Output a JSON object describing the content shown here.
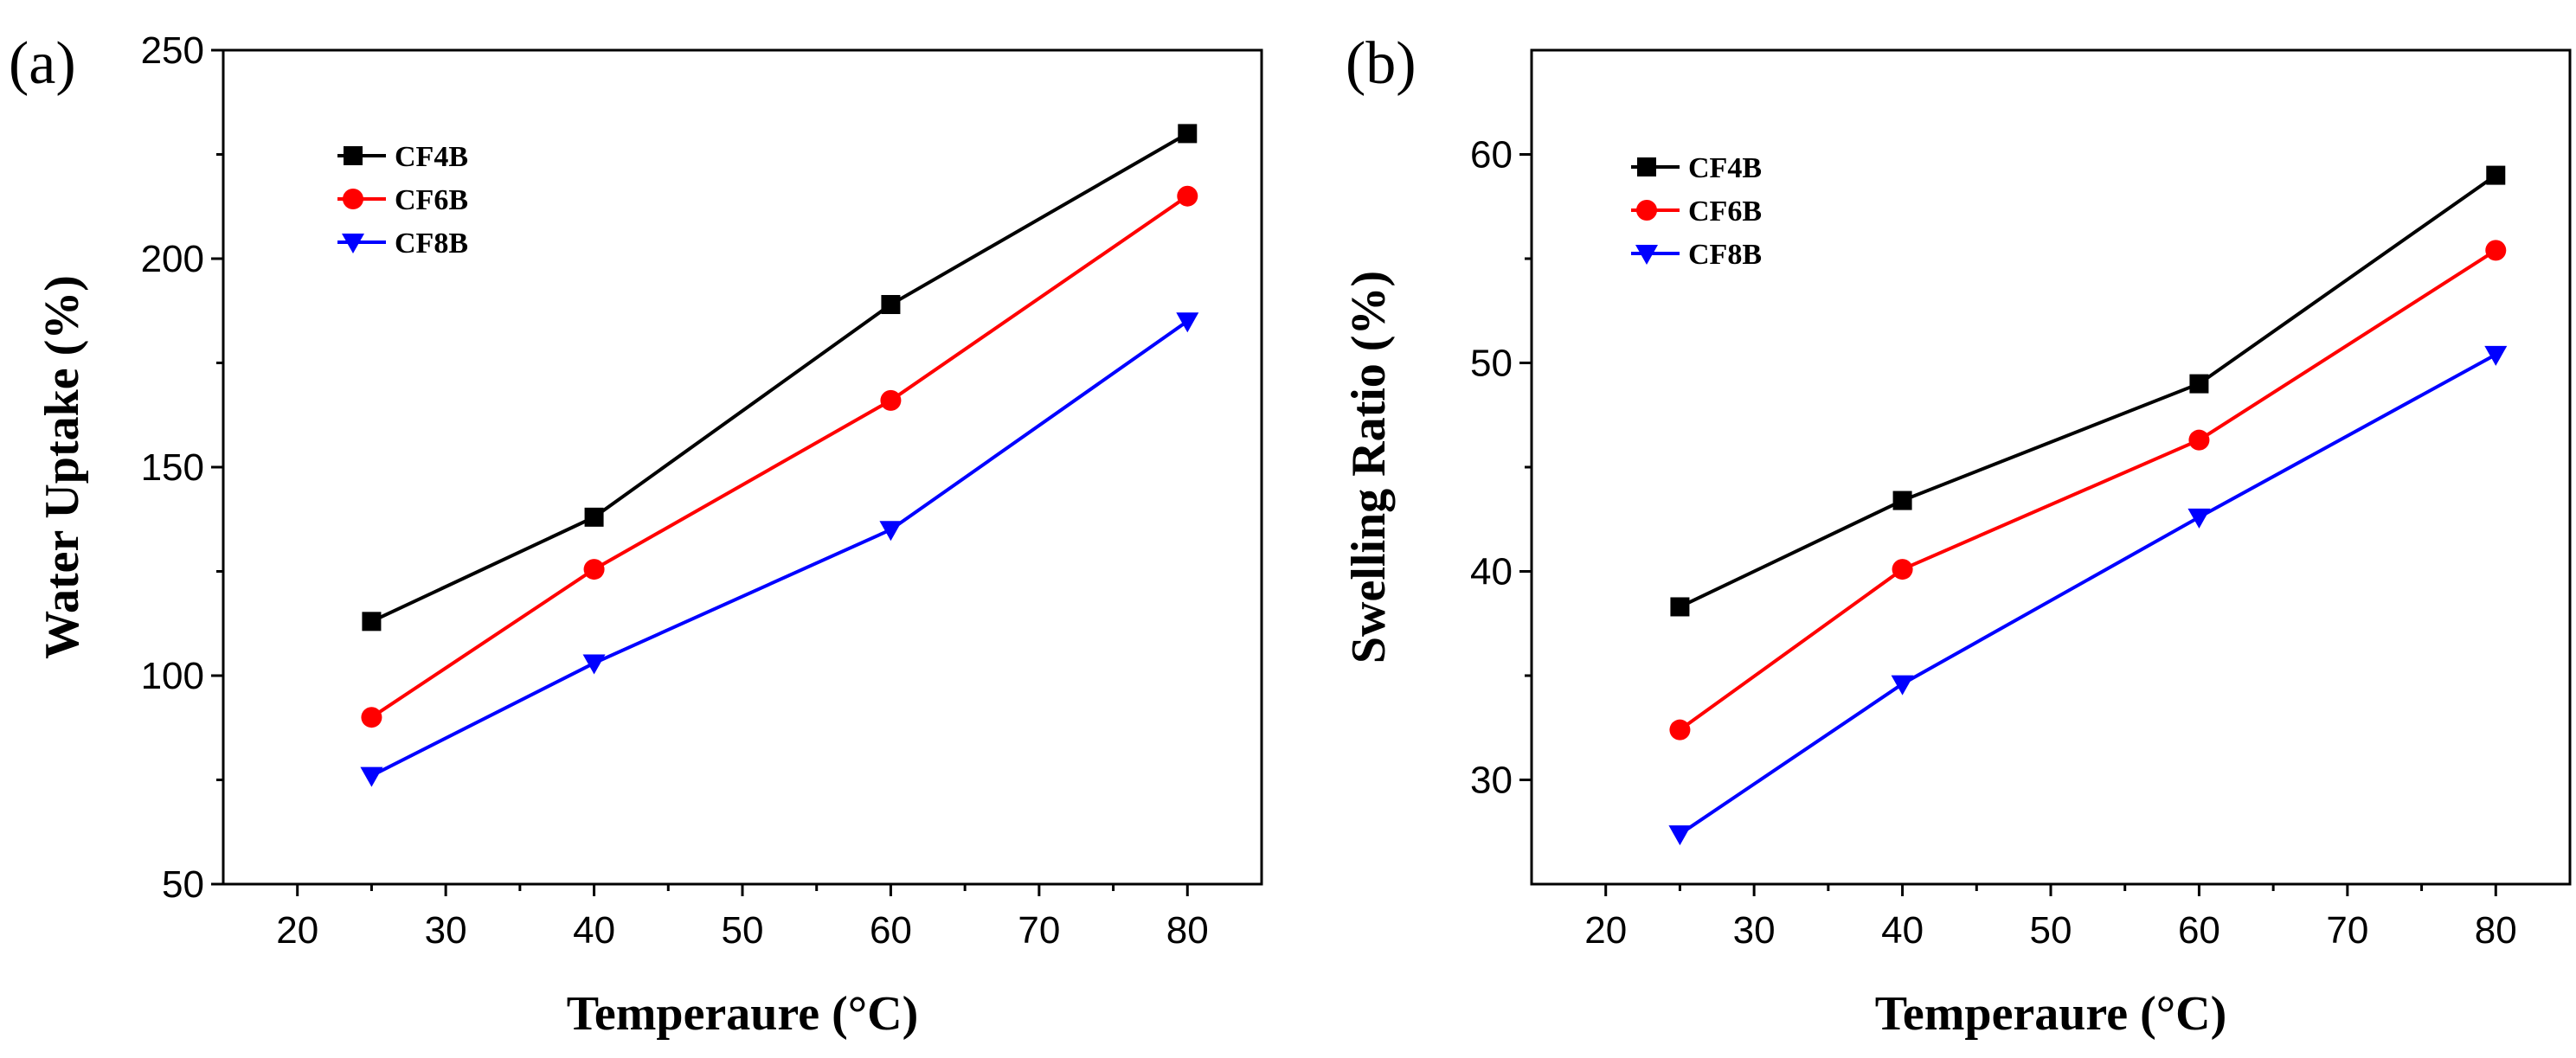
{
  "chart_data": [
    {
      "type": "line",
      "panel_label": "(a)",
      "xlabel": "Temperaure (°C)",
      "ylabel": "Water Uptake (%)",
      "xlim": [
        15,
        85
      ],
      "ylim": [
        50,
        250
      ],
      "xticks": [
        20,
        30,
        40,
        50,
        60,
        70,
        80
      ],
      "yticks": [
        50,
        100,
        150,
        200,
        250
      ],
      "grid": false,
      "legend_position": "top-left",
      "x": [
        25,
        40,
        60,
        80
      ],
      "series": [
        {
          "name": "CF4B",
          "color": "#000000",
          "marker": "square",
          "values": [
            113,
            138,
            189,
            230
          ]
        },
        {
          "name": "CF6B",
          "color": "#ff0000",
          "marker": "circle",
          "values": [
            90,
            125.5,
            166,
            215
          ]
        },
        {
          "name": "CF8B",
          "color": "#0000ff",
          "marker": "triangle-down",
          "values": [
            76,
            103,
            135,
            185
          ]
        }
      ]
    },
    {
      "type": "line",
      "panel_label": "(b)",
      "xlabel": "Temperaure (°C)",
      "ylabel": "Swelling Ratio (%)",
      "xlim": [
        15,
        85
      ],
      "ylim": [
        25,
        65
      ],
      "xticks": [
        20,
        30,
        40,
        50,
        60,
        70,
        80
      ],
      "yticks": [
        30,
        40,
        50,
        60
      ],
      "grid": false,
      "legend_position": "top-left",
      "x": [
        25,
        40,
        60,
        80
      ],
      "series": [
        {
          "name": "CF4B",
          "color": "#000000",
          "marker": "square",
          "values": [
            38.3,
            43.4,
            49,
            59
          ]
        },
        {
          "name": "CF6B",
          "color": "#ff0000",
          "marker": "circle",
          "values": [
            32.4,
            40.1,
            46.3,
            55.4
          ]
        },
        {
          "name": "CF8B",
          "color": "#0000ff",
          "marker": "triangle-down",
          "values": [
            27.4,
            34.6,
            42.6,
            50.4
          ]
        }
      ]
    }
  ]
}
